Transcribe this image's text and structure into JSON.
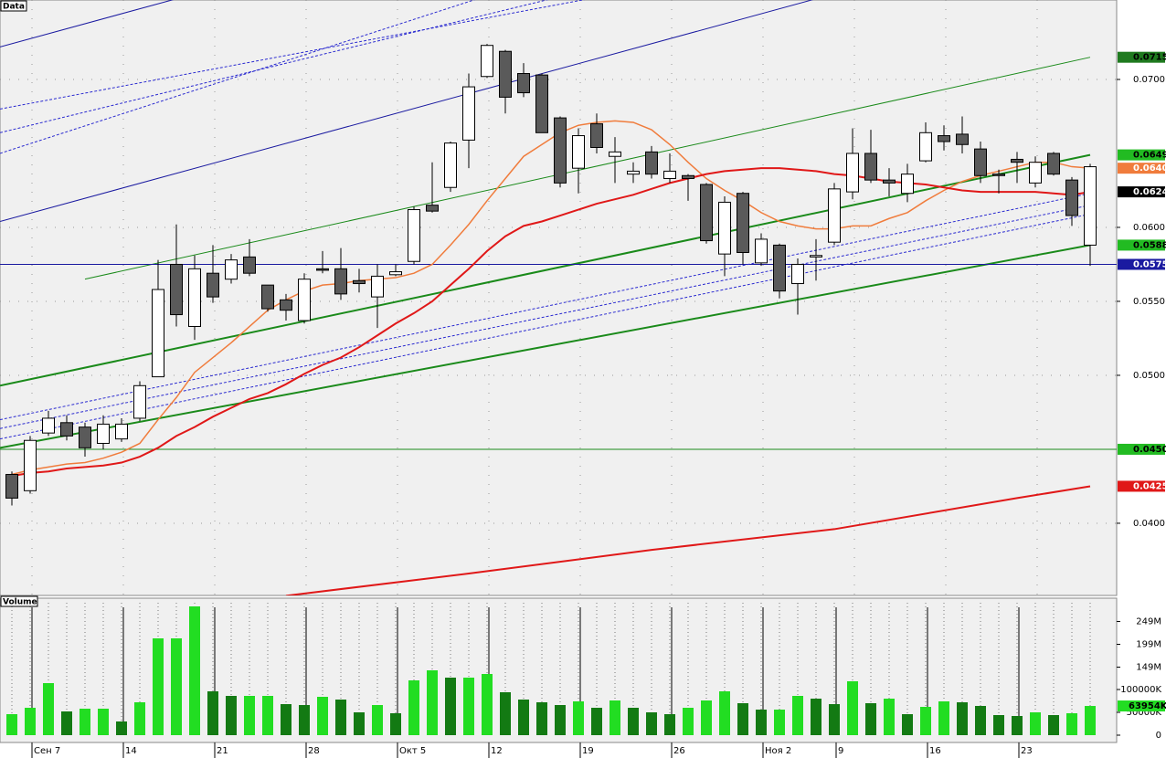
{
  "chart_data": [
    {
      "type": "candlestick",
      "title": "Data",
      "open": [
        0.0433,
        0.0422,
        0.0461,
        0.0468,
        0.0465,
        0.0454,
        0.0457,
        0.0471,
        0.0499,
        0.0575,
        0.0533,
        0.0569,
        0.0565,
        0.058,
        0.0561,
        0.0551,
        0.0537,
        0.0572,
        0.0572,
        0.0564,
        0.0553,
        0.0568,
        0.0577,
        0.0615,
        0.0627,
        0.0659,
        0.0702,
        0.0719,
        0.0704,
        0.0703,
        0.0674,
        0.064,
        0.067,
        0.0648,
        0.0636,
        0.0651,
        0.0633,
        0.0635,
        0.0629,
        0.0582,
        0.0623,
        0.0576,
        0.0588,
        0.0562,
        0.058,
        0.059,
        0.0624,
        0.065,
        0.0632,
        0.0623,
        0.0645,
        0.0662,
        0.0663,
        0.0653,
        0.0636,
        0.0646,
        0.063,
        0.065,
        0.0632,
        0.0588
      ],
      "high": [
        0.0435,
        0.0459,
        0.0476,
        0.0473,
        0.0468,
        0.0473,
        0.0471,
        0.0496,
        0.0578,
        0.0602,
        0.0581,
        0.0588,
        0.0582,
        0.0592,
        0.0561,
        0.0555,
        0.0569,
        0.0584,
        0.0586,
        0.0572,
        0.0575,
        0.0575,
        0.0614,
        0.0644,
        0.0658,
        0.0704,
        0.0724,
        0.072,
        0.0711,
        0.0704,
        0.0675,
        0.0667,
        0.0677,
        0.0661,
        0.0644,
        0.0655,
        0.065,
        0.0636,
        0.063,
        0.0621,
        0.0624,
        0.0596,
        0.0589,
        0.0579,
        0.0592,
        0.063,
        0.0667,
        0.0666,
        0.064,
        0.0643,
        0.0671,
        0.0669,
        0.0675,
        0.0658,
        0.0639,
        0.0651,
        0.0648,
        0.0651,
        0.0634,
        0.0643
      ],
      "low": [
        0.0412,
        0.042,
        0.0459,
        0.0456,
        0.0445,
        0.045,
        0.0455,
        0.0469,
        0.0499,
        0.0533,
        0.0524,
        0.0549,
        0.0562,
        0.0567,
        0.0543,
        0.0537,
        0.0535,
        0.0569,
        0.0551,
        0.0556,
        0.0532,
        0.0567,
        0.0575,
        0.061,
        0.0624,
        0.064,
        0.0701,
        0.0677,
        0.0688,
        0.0664,
        0.0627,
        0.0623,
        0.065,
        0.063,
        0.063,
        0.0633,
        0.063,
        0.0618,
        0.0589,
        0.0567,
        0.0575,
        0.0574,
        0.0552,
        0.0541,
        0.0564,
        0.0588,
        0.0619,
        0.063,
        0.0621,
        0.0617,
        0.0644,
        0.0652,
        0.065,
        0.063,
        0.0623,
        0.063,
        0.0627,
        0.0635,
        0.0601,
        0.0574
      ],
      "close": [
        0.0417,
        0.0456,
        0.0471,
        0.0459,
        0.0451,
        0.0467,
        0.0467,
        0.0493,
        0.0558,
        0.0541,
        0.0572,
        0.0553,
        0.0578,
        0.0569,
        0.0545,
        0.0544,
        0.0565,
        0.0571,
        0.0555,
        0.0562,
        0.0567,
        0.057,
        0.0612,
        0.0611,
        0.0657,
        0.0695,
        0.0723,
        0.0688,
        0.0691,
        0.0664,
        0.063,
        0.0662,
        0.0654,
        0.0651,
        0.0638,
        0.0636,
        0.0638,
        0.0633,
        0.0591,
        0.0617,
        0.0583,
        0.0592,
        0.0557,
        0.0575,
        0.0581,
        0.0626,
        0.065,
        0.0632,
        0.063,
        0.0636,
        0.0664,
        0.0658,
        0.0656,
        0.0635,
        0.0635,
        0.0644,
        0.0644,
        0.0636,
        0.0608,
        0.0641
      ],
      "up_color": "#ffffff",
      "down_color": "#5a5a5a",
      "moving_averages": [
        {
          "color": "#f07c3c",
          "values": [
            0.0433,
            0.0436,
            0.0438,
            0.044,
            0.0441,
            0.0444,
            0.0448,
            0.0454,
            0.047,
            0.0485,
            0.0502,
            0.0512,
            0.0522,
            0.0533,
            0.0544,
            0.0551,
            0.0557,
            0.0561,
            0.0562,
            0.0564,
            0.0565,
            0.0566,
            0.0569,
            0.0575,
            0.0588,
            0.0602,
            0.0618,
            0.0633,
            0.0648,
            0.0656,
            0.0664,
            0.0669,
            0.0671,
            0.0672,
            0.0671,
            0.0666,
            0.0656,
            0.0644,
            0.0633,
            0.0625,
            0.0618,
            0.061,
            0.0604,
            0.0601,
            0.0599,
            0.0599,
            0.0601,
            0.0601,
            0.0606,
            0.061,
            0.0618,
            0.0625,
            0.0631,
            0.0635,
            0.0638,
            0.0641,
            0.0644,
            0.0644,
            0.0641,
            0.064
          ]
        },
        {
          "color": "#e01818",
          "values": [
            0.0432,
            0.0434,
            0.0435,
            0.0437,
            0.0438,
            0.0439,
            0.0441,
            0.0445,
            0.0451,
            0.0459,
            0.0465,
            0.0472,
            0.0478,
            0.0484,
            0.0488,
            0.0494,
            0.0501,
            0.0507,
            0.0512,
            0.0519,
            0.0527,
            0.0535,
            0.0542,
            0.055,
            0.0561,
            0.0572,
            0.0584,
            0.0594,
            0.0601,
            0.0604,
            0.0608,
            0.0612,
            0.0616,
            0.0619,
            0.0622,
            0.0626,
            0.063,
            0.0633,
            0.0636,
            0.0638,
            0.0639,
            0.064,
            0.064,
            0.0639,
            0.0638,
            0.0636,
            0.0635,
            0.0633,
            0.0631,
            0.063,
            0.0629,
            0.0627,
            0.0625,
            0.0624,
            0.0624,
            0.0624,
            0.0624,
            0.0623,
            0.0622,
            0.0624
          ]
        }
      ],
      "lines": [
        {
          "color": "#e01818",
          "width": 2,
          "x": [
            15,
            25,
            35,
            45,
            55,
            59
          ],
          "values": [
            0.0351,
            0.0366,
            0.0382,
            0.0396,
            0.0417,
            0.0425
          ]
        },
        {
          "color": "#1a8a1a",
          "width": 2,
          "x": [
            -0.65,
            59
          ],
          "values": [
            0.0451,
            0.0588
          ]
        },
        {
          "color": "#1a8a1a",
          "width": 2,
          "x": [
            -0.65,
            59
          ],
          "values": [
            0.0493,
            0.0649
          ]
        },
        {
          "color": "#1a8a1a",
          "width": 1,
          "x": [
            4,
            59
          ],
          "values": [
            0.0565,
            0.0715
          ]
        },
        {
          "color": "#1a8a1a",
          "width": 1,
          "x": [
            -0.65,
            60.5
          ],
          "values": [
            0.045,
            0.045
          ]
        },
        {
          "color": "#1a1aa0",
          "width": 1,
          "x": [
            -0.65,
            60.5
          ],
          "values": [
            0.0575,
            0.0575
          ]
        },
        {
          "color": "#1a1aa0",
          "width": 1,
          "x": [
            -0.65,
            43.85
          ],
          "values": [
            0.0604,
            0.0754
          ]
        },
        {
          "color": "#1a1aa0",
          "width": 1,
          "x": [
            -0.65,
            8.85
          ],
          "values": [
            0.0722,
            0.0754
          ]
        },
        {
          "color": "#2a2ad0",
          "width": 1,
          "dash": true,
          "x": [
            -0.65,
            59
          ],
          "values": [
            0.047,
            0.0623
          ]
        },
        {
          "color": "#2a2ad0",
          "width": 1,
          "dash": true,
          "x": [
            -0.65,
            59
          ],
          "values": [
            0.0464,
            0.0615
          ]
        },
        {
          "color": "#2a2ad0",
          "width": 1,
          "dash": true,
          "x": [
            -0.65,
            59
          ],
          "values": [
            0.0457,
            0.0609
          ]
        },
        {
          "color": "#2a2ad0",
          "width": 1,
          "dash": true,
          "x": [
            -0.65,
            31.35
          ],
          "values": [
            0.068,
            0.0754
          ]
        },
        {
          "color": "#2a2ad0",
          "width": 1,
          "dash": true,
          "x": [
            -0.65,
            29.35
          ],
          "values": [
            0.0664,
            0.0754
          ]
        },
        {
          "color": "#2a2ad0",
          "width": 1,
          "dash": true,
          "x": [
            -0.65,
            25.35
          ],
          "values": [
            0.065,
            0.0754
          ]
        }
      ],
      "ylim": [
        0.03512,
        0.07537
      ],
      "yticks": [
        {
          "value": 0.04,
          "label": "0.0400"
        },
        {
          "value": 0.05,
          "label": "0.0500"
        },
        {
          "value": 0.055,
          "label": "0.0550"
        },
        {
          "value": 0.06,
          "label": "0.0600"
        },
        {
          "value": 0.07,
          "label": "0.0700"
        }
      ],
      "price_tags": [
        {
          "value": 0.0715,
          "label": "0.0715",
          "color": "#1f7a1f",
          "text_color": "#000000"
        },
        {
          "value": 0.0649,
          "label": "0.0649",
          "color": "#22bb22",
          "text_color": "#000000"
        },
        {
          "value": 0.064,
          "label": "0.0640",
          "color": "#f07c3c",
          "text_color": "#ffffff"
        },
        {
          "value": 0.0624,
          "label": "0.0624",
          "color": "#000000",
          "text_color": "#ffffff"
        },
        {
          "value": 0.0588,
          "label": "0.0588",
          "color": "#22bb22",
          "text_color": "#000000"
        },
        {
          "value": 0.0575,
          "label": "0.0575",
          "color": "#1a1aa0",
          "text_color": "#ffffff"
        },
        {
          "value": 0.045,
          "label": "0.0450",
          "color": "#22bb22",
          "text_color": "#000000"
        },
        {
          "value": 0.0425,
          "label": "0.0425",
          "color": "#e01818",
          "text_color": "#ffffff"
        }
      ],
      "grid": true
    },
    {
      "type": "bar",
      "title": "Volume",
      "categories": [
        null,
        "Сен 7",
        null,
        null,
        null,
        null,
        "14",
        null,
        null,
        null,
        null,
        "21",
        null,
        null,
        null,
        null,
        "28",
        null,
        null,
        null,
        null,
        "Окт 5",
        null,
        null,
        null,
        null,
        "12",
        null,
        null,
        null,
        null,
        "19",
        null,
        null,
        null,
        null,
        "26",
        null,
        null,
        null,
        null,
        "Ноя 2",
        null,
        null,
        null,
        "9",
        null,
        null,
        null,
        null,
        "16",
        null,
        null,
        null,
        null,
        "23",
        null,
        null,
        null,
        null
      ],
      "values": [
        46,
        60,
        114,
        52,
        58,
        58,
        30,
        72,
        212,
        212,
        282,
        96,
        86,
        86,
        86,
        68,
        66,
        84,
        78,
        50,
        66,
        48,
        120,
        142,
        126,
        126,
        134,
        94,
        78,
        72,
        66,
        74,
        60,
        76,
        60,
        50,
        46,
        60,
        76,
        96,
        70,
        56,
        56,
        86,
        80,
        68,
        118,
        70,
        80,
        46,
        62,
        74,
        72,
        64,
        44,
        42,
        50,
        44,
        48,
        63.954
      ],
      "up_color": "#22dd22",
      "down_color": "#137a13",
      "ylim": [
        0,
        300
      ],
      "yticks": [
        0,
        {
          "value": 50,
          "label": "50000K"
        },
        {
          "value": 100,
          "label": "100000K"
        },
        {
          "value": 149,
          "label": "149M"
        },
        {
          "value": 199,
          "label": "199M"
        },
        {
          "value": 249,
          "label": "249M"
        }
      ],
      "last_tag": {
        "value": 63.954,
        "label": "63954K",
        "color": "#22dd22"
      }
    }
  ]
}
